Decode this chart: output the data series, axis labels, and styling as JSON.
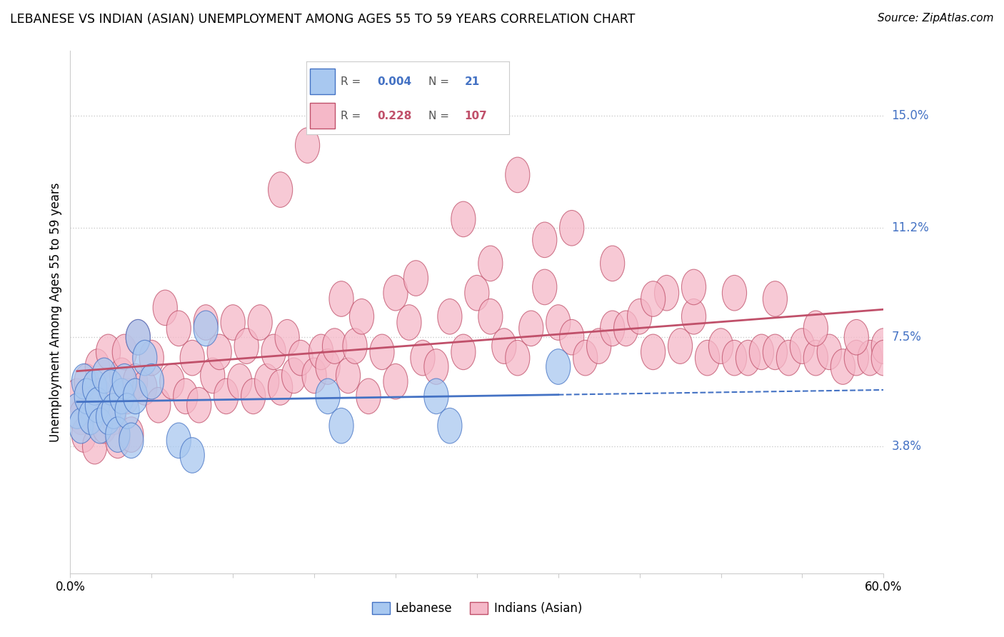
{
  "title": "LEBANESE VS INDIAN (ASIAN) UNEMPLOYMENT AMONG AGES 55 TO 59 YEARS CORRELATION CHART",
  "source": "Source: ZipAtlas.com",
  "ylabel": "Unemployment Among Ages 55 to 59 years",
  "xlim": [
    0.0,
    0.6
  ],
  "ylim": [
    -0.005,
    0.172
  ],
  "yticks": [
    0.038,
    0.075,
    0.112,
    0.15
  ],
  "ytick_labels": [
    "3.8%",
    "7.5%",
    "11.2%",
    "15.0%"
  ],
  "xticks": [
    0.0,
    0.06,
    0.12,
    0.18,
    0.24,
    0.3,
    0.36,
    0.42,
    0.48,
    0.54,
    0.6
  ],
  "xtick_labels": [
    "0.0%",
    "",
    "",
    "",
    "",
    "",
    "",
    "",
    "",
    "",
    "60.0%"
  ],
  "color_lebanese": "#A8C8F0",
  "color_indian": "#F5B8C8",
  "trend_color_lebanese": "#4472C4",
  "trend_color_indian": "#C0506A",
  "color_lebanese_R": "#4472C4",
  "color_indian_R": "#C0506A",
  "background_color": "#FFFFFF",
  "lebanese_x": [
    0.005,
    0.008,
    0.01,
    0.012,
    0.015,
    0.018,
    0.02,
    0.022,
    0.025,
    0.028,
    0.03,
    0.032,
    0.035,
    0.038,
    0.04,
    0.042,
    0.045,
    0.048,
    0.05,
    0.055,
    0.06,
    0.08,
    0.09,
    0.1,
    0.19,
    0.2,
    0.27,
    0.28,
    0.36
  ],
  "lebanese_y": [
    0.05,
    0.045,
    0.06,
    0.055,
    0.048,
    0.058,
    0.052,
    0.045,
    0.062,
    0.048,
    0.058,
    0.05,
    0.042,
    0.055,
    0.06,
    0.05,
    0.04,
    0.055,
    0.075,
    0.068,
    0.06,
    0.04,
    0.035,
    0.078,
    0.055,
    0.045,
    0.055,
    0.045,
    0.065
  ],
  "indian_x": [
    0.005,
    0.008,
    0.01,
    0.012,
    0.015,
    0.018,
    0.02,
    0.022,
    0.025,
    0.028,
    0.03,
    0.032,
    0.035,
    0.038,
    0.04,
    0.042,
    0.045,
    0.048,
    0.05,
    0.055,
    0.06,
    0.065,
    0.07,
    0.075,
    0.08,
    0.085,
    0.09,
    0.095,
    0.1,
    0.105,
    0.11,
    0.115,
    0.12,
    0.125,
    0.13,
    0.135,
    0.14,
    0.145,
    0.15,
    0.155,
    0.16,
    0.165,
    0.17,
    0.18,
    0.185,
    0.19,
    0.195,
    0.2,
    0.205,
    0.21,
    0.215,
    0.22,
    0.23,
    0.24,
    0.25,
    0.26,
    0.27,
    0.28,
    0.29,
    0.3,
    0.31,
    0.32,
    0.33,
    0.34,
    0.35,
    0.36,
    0.37,
    0.38,
    0.39,
    0.4,
    0.41,
    0.42,
    0.43,
    0.44,
    0.45,
    0.46,
    0.47,
    0.48,
    0.49,
    0.5,
    0.51,
    0.52,
    0.53,
    0.54,
    0.55,
    0.56,
    0.57,
    0.58,
    0.59,
    0.6,
    0.155,
    0.175,
    0.24,
    0.255,
    0.29,
    0.31,
    0.33,
    0.35,
    0.37,
    0.4,
    0.43,
    0.46,
    0.49,
    0.52,
    0.55,
    0.58,
    0.6
  ],
  "indian_y": [
    0.055,
    0.048,
    0.042,
    0.06,
    0.052,
    0.038,
    0.065,
    0.055,
    0.045,
    0.07,
    0.058,
    0.048,
    0.04,
    0.062,
    0.07,
    0.055,
    0.042,
    0.06,
    0.075,
    0.058,
    0.068,
    0.052,
    0.085,
    0.06,
    0.078,
    0.055,
    0.068,
    0.052,
    0.08,
    0.062,
    0.07,
    0.055,
    0.08,
    0.06,
    0.072,
    0.055,
    0.08,
    0.06,
    0.07,
    0.058,
    0.075,
    0.062,
    0.068,
    0.062,
    0.07,
    0.065,
    0.072,
    0.088,
    0.062,
    0.072,
    0.082,
    0.055,
    0.07,
    0.06,
    0.08,
    0.068,
    0.065,
    0.082,
    0.07,
    0.09,
    0.082,
    0.072,
    0.068,
    0.078,
    0.092,
    0.08,
    0.075,
    0.068,
    0.072,
    0.078,
    0.078,
    0.082,
    0.07,
    0.09,
    0.072,
    0.082,
    0.068,
    0.072,
    0.068,
    0.068,
    0.07,
    0.07,
    0.068,
    0.072,
    0.068,
    0.07,
    0.065,
    0.068,
    0.068,
    0.072,
    0.125,
    0.14,
    0.09,
    0.095,
    0.115,
    0.1,
    0.13,
    0.108,
    0.112,
    0.1,
    0.088,
    0.092,
    0.09,
    0.088,
    0.078,
    0.075,
    0.068
  ]
}
